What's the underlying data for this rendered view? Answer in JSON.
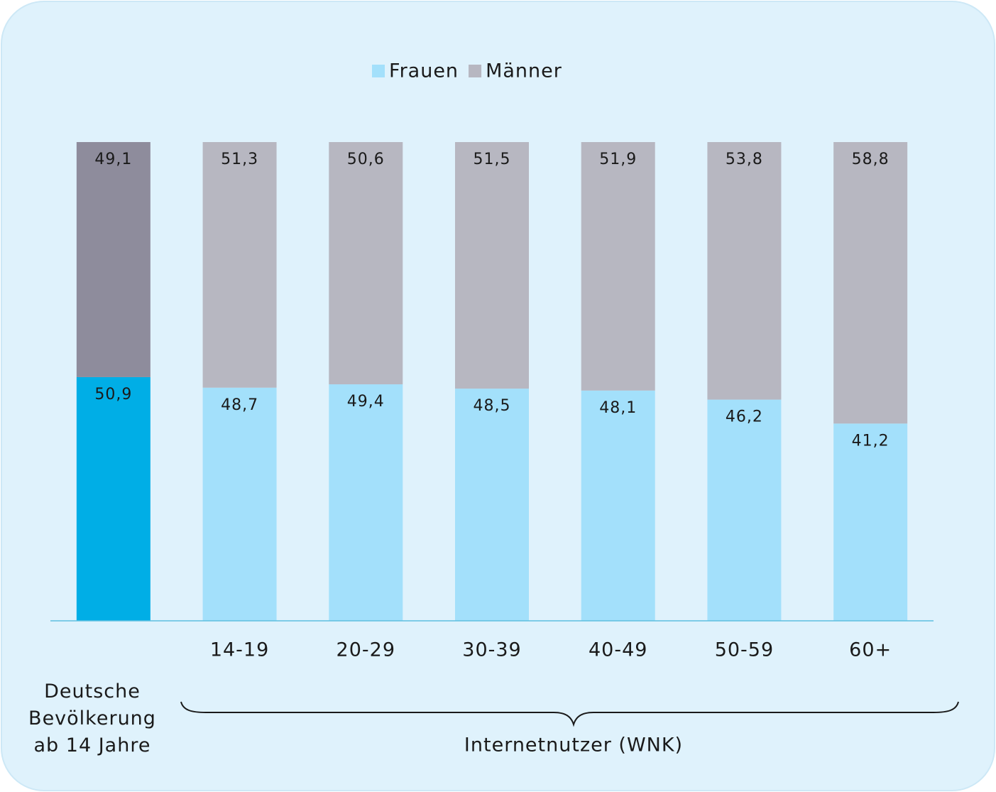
{
  "chart_data": {
    "type": "stacked_bar",
    "categories": [
      "Deutsche Bevölkerung ab 14 Jahre",
      "14-19",
      "20-29",
      "30-39",
      "40-49",
      "50-59",
      "60+"
    ],
    "group_label": "Internetnutzer (WNK)",
    "series": [
      {
        "name": "Frauen",
        "color": "#a3e0fb",
        "colors": [
          "#00aee6",
          "#a3e0fb",
          "#a3e0fb",
          "#a3e0fb",
          "#a3e0fb",
          "#a3e0fb",
          "#a3e0fb"
        ],
        "values": [
          50.9,
          48.7,
          49.4,
          48.5,
          48.1,
          46.2,
          41.2
        ],
        "value_labels": [
          "50,9",
          "48,7",
          "49,4",
          "48,5",
          "48,1",
          "46,2",
          "41,2"
        ]
      },
      {
        "name": "Männer",
        "color": "#b7b7c1",
        "colors": [
          "#8e8c9c",
          "#b7b7c1",
          "#b7b7c1",
          "#b7b7c1",
          "#b7b7c1",
          "#b7b7c1",
          "#b7b7c1"
        ],
        "values": [
          49.1,
          51.3,
          50.6,
          51.5,
          51.9,
          53.8,
          58.8
        ],
        "value_labels": [
          "49,1",
          "51,3",
          "50,6",
          "51,5",
          "51,9",
          "53,8",
          "58,8"
        ]
      }
    ],
    "ylim": [
      0,
      100
    ],
    "legend": "top"
  }
}
